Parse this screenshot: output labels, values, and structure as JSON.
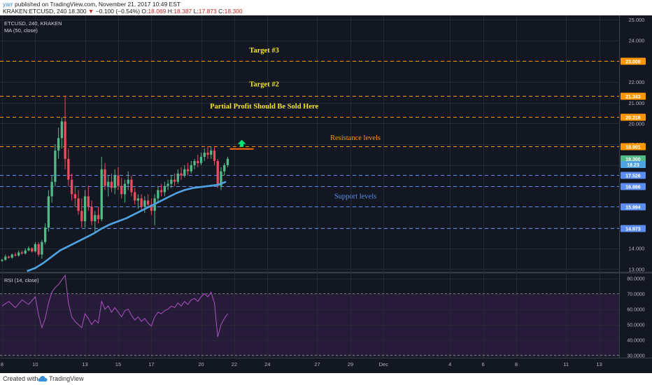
{
  "header": {
    "author": "yarr",
    "published_text": "published on TradingView.com, November 21, 2017 10:49 EST",
    "symbol_line": "KRAKEN:ETCUSD, 240",
    "last": "18.300",
    "change": "−0.100 (−0.54%)",
    "o_label": "O:",
    "o_val": "18.069",
    "h_label": "H:",
    "h_val": "18.387",
    "l_label": "L:",
    "l_val": "17.873",
    "c_label": "C:",
    "c_val": "18.300"
  },
  "footer": {
    "created_with": "Created with",
    "brand": "TradingView"
  },
  "colors": {
    "background": "#131722",
    "grid": "#262a35",
    "candle_up": "#53b987",
    "candle_down": "#eb4d5c",
    "ma": "#4fa3e0",
    "resistance": "#ff9800",
    "support": "#5b8ef0",
    "annotation_yellow": "#f5e61e",
    "rsi": "#b04fc4"
  },
  "chart_data": {
    "type": "candlestick",
    "symbol_label": "ETCUSD, 240, KRAKEN",
    "indicator_label": "MA (50, close)",
    "y_ticks": [
      "25.000",
      "24.000",
      "23.000",
      "22.000",
      "21.000",
      "20.000",
      "19.000",
      "18.000",
      "17.000",
      "16.000",
      "15.000",
      "14.000",
      "13.000"
    ],
    "y_range": [
      12.88,
      25.2
    ],
    "x_ticks": [
      "8",
      "10",
      "13",
      "15",
      "17",
      "20",
      "22",
      "24",
      "27",
      "29",
      "Dec",
      "4",
      "6",
      "8",
      "11",
      "13"
    ],
    "x_ticks_series": [
      8,
      10,
      13,
      15,
      17,
      20,
      22,
      24,
      27,
      29,
      31,
      35,
      37,
      39,
      42,
      44
    ],
    "x_range": [
      8.0,
      45.2
    ],
    "levels": [
      {
        "value": 23.0,
        "label": "23.000",
        "kind": "resistance"
      },
      {
        "value": 21.343,
        "label": "21.343",
        "kind": "resistance"
      },
      {
        "value": 20.316,
        "label": "20.316",
        "kind": "resistance"
      },
      {
        "value": 18.901,
        "label": "18.901",
        "kind": "resistance"
      },
      {
        "value": 17.526,
        "label": "17.526",
        "kind": "support"
      },
      {
        "value": 16.986,
        "label": "16.986",
        "kind": "support"
      },
      {
        "value": 15.994,
        "label": "15.994",
        "kind": "support"
      },
      {
        "value": 14.973,
        "label": "14.973",
        "kind": "support"
      }
    ],
    "price_tags": [
      {
        "value": 18.3,
        "label": "18.300",
        "kind": "last"
      },
      {
        "value": 18.03,
        "label": "18.23",
        "kind": "ma"
      }
    ],
    "annotations": [
      {
        "text": "Target #3",
        "day": 23.8,
        "price": 23.42,
        "color": "yellow"
      },
      {
        "text": "Target #2",
        "day": 23.8,
        "price": 21.78,
        "color": "yellow"
      },
      {
        "text": "Partial Profit Should Be Sold Here",
        "day": 23.8,
        "price": 20.73,
        "color": "yellow"
      },
      {
        "text": "Resistance levels",
        "day": 29.3,
        "price": 19.2,
        "color": "orange"
      },
      {
        "text": "Support levels",
        "day": 29.3,
        "price": 16.4,
        "color": "blue"
      }
    ],
    "arrow": {
      "day": 22.45,
      "price": 18.98
    },
    "ohlc_series": [
      [
        8.0,
        13.4,
        13.5,
        13.35,
        13.45
      ],
      [
        8.2,
        13.45,
        13.7,
        13.4,
        13.6
      ],
      [
        8.4,
        13.6,
        13.65,
        13.5,
        13.55
      ],
      [
        8.6,
        13.55,
        13.75,
        13.5,
        13.7
      ],
      [
        8.8,
        13.7,
        13.8,
        13.6,
        13.65
      ],
      [
        9.0,
        13.65,
        13.9,
        13.6,
        13.8
      ],
      [
        9.2,
        13.8,
        13.9,
        13.7,
        13.75
      ],
      [
        9.4,
        13.75,
        14.0,
        13.7,
        13.9
      ],
      [
        9.6,
        13.9,
        14.1,
        13.85,
        14.0
      ],
      [
        9.8,
        14.0,
        14.05,
        13.8,
        13.85
      ],
      [
        10.0,
        13.85,
        14.3,
        13.8,
        14.2
      ],
      [
        10.2,
        14.2,
        14.3,
        13.6,
        13.7
      ],
      [
        10.4,
        13.7,
        14.4,
        13.5,
        14.3
      ],
      [
        10.6,
        14.3,
        15.2,
        14.2,
        15.0
      ],
      [
        10.8,
        15.0,
        16.8,
        14.8,
        16.5
      ],
      [
        11.0,
        16.5,
        17.5,
        16.2,
        17.2
      ],
      [
        11.2,
        17.2,
        19.0,
        17.0,
        18.7
      ],
      [
        11.4,
        18.7,
        19.8,
        18.3,
        19.3
      ],
      [
        11.6,
        19.3,
        20.3,
        18.8,
        20.1
      ],
      [
        11.8,
        20.1,
        21.35,
        17.8,
        18.3
      ],
      [
        12.0,
        18.3,
        18.8,
        17.0,
        17.3
      ],
      [
        12.2,
        17.3,
        17.6,
        16.3,
        16.6
      ],
      [
        12.4,
        16.6,
        17.0,
        16.0,
        16.4
      ],
      [
        12.6,
        16.4,
        16.8,
        15.6,
        15.8
      ],
      [
        12.8,
        15.8,
        16.4,
        15.0,
        15.3
      ],
      [
        13.0,
        15.3,
        16.8,
        15.0,
        16.5
      ],
      [
        13.2,
        16.5,
        17.0,
        15.8,
        16.0
      ],
      [
        13.4,
        16.0,
        16.3,
        15.1,
        15.3
      ],
      [
        13.6,
        15.3,
        15.8,
        14.8,
        15.6
      ],
      [
        13.8,
        15.6,
        16.0,
        15.2,
        15.4
      ],
      [
        14.0,
        15.4,
        18.4,
        15.3,
        17.8
      ],
      [
        14.2,
        17.8,
        18.1,
        16.8,
        17.0
      ],
      [
        14.4,
        17.0,
        17.5,
        16.5,
        17.2
      ],
      [
        14.6,
        17.2,
        17.6,
        16.7,
        16.9
      ],
      [
        14.8,
        16.9,
        17.8,
        16.6,
        17.5
      ],
      [
        15.0,
        17.5,
        17.9,
        16.8,
        17.0
      ],
      [
        15.2,
        17.0,
        17.4,
        16.4,
        16.6
      ],
      [
        15.4,
        16.6,
        17.3,
        16.2,
        17.1
      ],
      [
        15.6,
        17.1,
        17.7,
        16.8,
        17.3
      ],
      [
        15.8,
        17.3,
        17.5,
        16.5,
        16.7
      ],
      [
        16.0,
        16.7,
        16.9,
        16.1,
        16.3
      ],
      [
        16.2,
        16.3,
        16.6,
        15.9,
        16.4
      ],
      [
        16.4,
        16.4,
        16.6,
        15.8,
        16.0
      ],
      [
        16.6,
        16.0,
        16.5,
        15.7,
        16.3
      ],
      [
        16.8,
        16.3,
        16.6,
        16.0,
        16.1
      ],
      [
        17.0,
        16.1,
        16.4,
        15.6,
        15.8
      ],
      [
        17.2,
        15.8,
        16.6,
        15.1,
        16.4
      ],
      [
        17.4,
        16.4,
        17.0,
        16.2,
        16.8
      ],
      [
        17.6,
        16.8,
        17.1,
        16.5,
        16.7
      ],
      [
        17.8,
        16.7,
        17.2,
        16.5,
        17.0
      ],
      [
        18.0,
        17.0,
        17.3,
        16.8,
        17.1
      ],
      [
        18.2,
        17.1,
        17.5,
        16.9,
        17.3
      ],
      [
        18.4,
        17.3,
        17.6,
        17.0,
        17.2
      ],
      [
        18.6,
        17.2,
        17.8,
        17.1,
        17.6
      ],
      [
        18.8,
        17.6,
        17.9,
        17.3,
        17.5
      ],
      [
        19.0,
        17.5,
        18.0,
        17.4,
        17.8
      ],
      [
        19.2,
        17.8,
        18.1,
        17.5,
        17.7
      ],
      [
        19.4,
        17.7,
        18.2,
        17.6,
        18.0
      ],
      [
        19.6,
        18.0,
        18.3,
        17.8,
        18.2
      ],
      [
        19.8,
        18.2,
        18.5,
        17.9,
        18.1
      ],
      [
        20.0,
        18.1,
        18.6,
        18.0,
        18.4
      ],
      [
        20.2,
        18.4,
        18.8,
        18.2,
        18.6
      ],
      [
        20.4,
        18.6,
        18.9,
        18.3,
        18.5
      ],
      [
        20.6,
        18.5,
        18.9,
        18.3,
        18.7
      ],
      [
        20.8,
        18.7,
        18.85,
        18.0,
        18.2
      ],
      [
        21.0,
        18.2,
        18.3,
        16.9,
        17.0
      ],
      [
        21.2,
        17.0,
        17.9,
        16.8,
        17.7
      ],
      [
        21.4,
        17.7,
        18.1,
        17.5,
        18.0
      ],
      [
        21.6,
        18.0,
        18.4,
        17.9,
        18.3
      ]
    ],
    "ma_series": [
      [
        9.5,
        12.9
      ],
      [
        10.0,
        13.05
      ],
      [
        10.5,
        13.3
      ],
      [
        11.0,
        13.6
      ],
      [
        11.5,
        13.9
      ],
      [
        12.0,
        14.1
      ],
      [
        12.5,
        14.3
      ],
      [
        13.0,
        14.5
      ],
      [
        13.5,
        14.7
      ],
      [
        14.0,
        14.95
      ],
      [
        14.5,
        15.15
      ],
      [
        15.0,
        15.3
      ],
      [
        15.5,
        15.45
      ],
      [
        16.0,
        15.65
      ],
      [
        16.5,
        15.85
      ],
      [
        17.0,
        16.05
      ],
      [
        17.5,
        16.25
      ],
      [
        18.0,
        16.45
      ],
      [
        18.5,
        16.65
      ],
      [
        19.0,
        16.8
      ],
      [
        19.5,
        16.9
      ],
      [
        20.0,
        16.95
      ],
      [
        20.5,
        17.0
      ],
      [
        21.0,
        17.05
      ],
      [
        21.5,
        17.2
      ]
    ],
    "rsi": {
      "label": "RSI (14, close)",
      "y_ticks": [
        "80.0000",
        "70.0000",
        "60.0000",
        "50.0000",
        "40.0000",
        "30.0000"
      ],
      "y_range": [
        28.5,
        83
      ],
      "upper_band": 70,
      "lower_band": 30,
      "series": [
        [
          8.0,
          62
        ],
        [
          8.4,
          65
        ],
        [
          8.8,
          61
        ],
        [
          9.2,
          66
        ],
        [
          9.6,
          63
        ],
        [
          10.0,
          68
        ],
        [
          10.2,
          56
        ],
        [
          10.4,
          48
        ],
        [
          10.6,
          54
        ],
        [
          10.8,
          64
        ],
        [
          11.0,
          71
        ],
        [
          11.2,
          74
        ],
        [
          11.4,
          76
        ],
        [
          11.6,
          79
        ],
        [
          11.8,
          82
        ],
        [
          12.0,
          64
        ],
        [
          12.2,
          55
        ],
        [
          12.4,
          52
        ],
        [
          12.6,
          50
        ],
        [
          12.8,
          48
        ],
        [
          13.0,
          57
        ],
        [
          13.2,
          54
        ],
        [
          13.4,
          50
        ],
        [
          13.6,
          53
        ],
        [
          13.8,
          51
        ],
        [
          14.0,
          65
        ],
        [
          14.2,
          60
        ],
        [
          14.4,
          62
        ],
        [
          14.6,
          58
        ],
        [
          14.8,
          61
        ],
        [
          15.0,
          58
        ],
        [
          15.2,
          55
        ],
        [
          15.4,
          59
        ],
        [
          15.6,
          60
        ],
        [
          15.8,
          56
        ],
        [
          16.0,
          53
        ],
        [
          16.2,
          55
        ],
        [
          16.4,
          52
        ],
        [
          16.6,
          54
        ],
        [
          16.8,
          51
        ],
        [
          17.0,
          49
        ],
        [
          17.2,
          55
        ],
        [
          17.4,
          58
        ],
        [
          17.6,
          57
        ],
        [
          17.8,
          59
        ],
        [
          18.0,
          60
        ],
        [
          18.2,
          62
        ],
        [
          18.4,
          61
        ],
        [
          18.6,
          64
        ],
        [
          18.8,
          62
        ],
        [
          19.0,
          65
        ],
        [
          19.2,
          63
        ],
        [
          19.4,
          66
        ],
        [
          19.6,
          67
        ],
        [
          19.8,
          65
        ],
        [
          20.0,
          68
        ],
        [
          20.2,
          70
        ],
        [
          20.4,
          68
        ],
        [
          20.6,
          71
        ],
        [
          20.8,
          64
        ],
        [
          21.0,
          42
        ],
        [
          21.2,
          50
        ],
        [
          21.4,
          54
        ],
        [
          21.6,
          57
        ]
      ]
    }
  }
}
